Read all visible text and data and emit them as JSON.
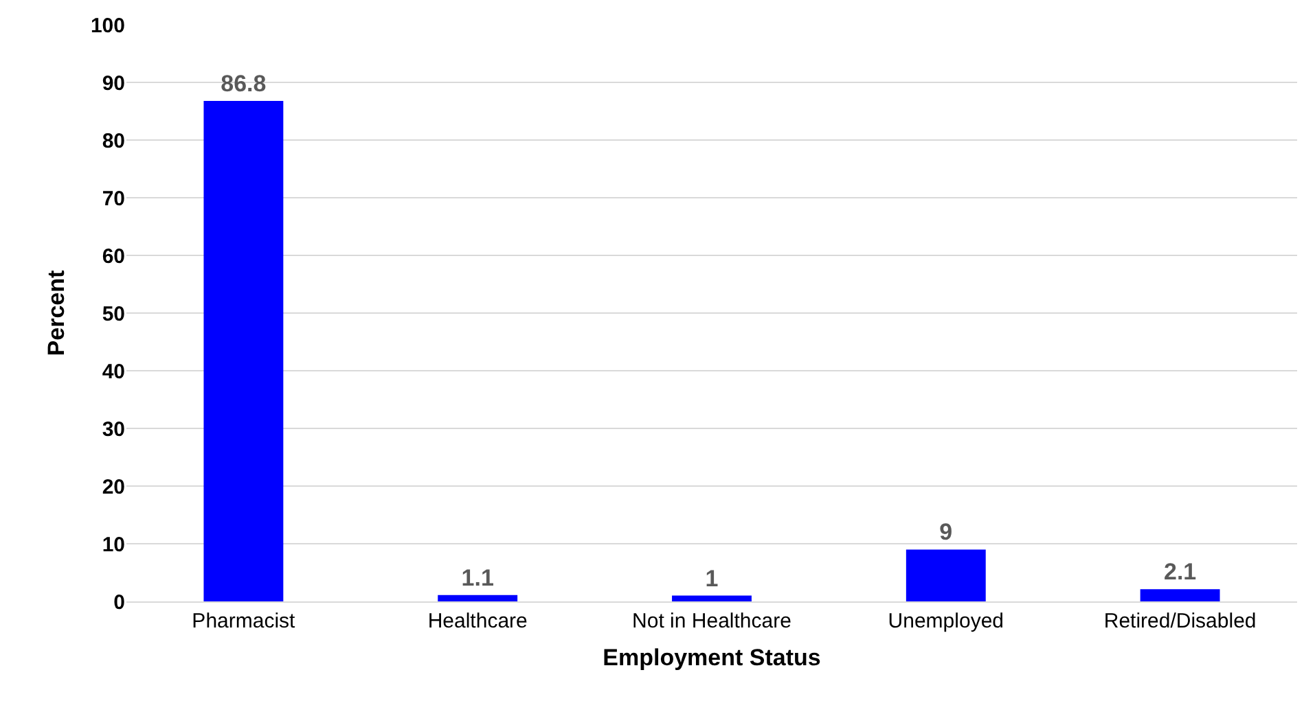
{
  "chart_data": {
    "type": "bar",
    "xlabel": "Employment Status",
    "ylabel": "Percent",
    "categories": [
      "Pharmacist",
      "Healthcare",
      "Not in Healthcare",
      "Unemployed",
      "Retired/Disabled"
    ],
    "values": [
      86.8,
      1.1,
      1,
      9,
      2.1
    ],
    "color": "#0000ff",
    "ylim": [
      0,
      100
    ],
    "yticks": [
      0,
      10,
      20,
      30,
      40,
      50,
      60,
      70,
      80,
      90,
      100
    ],
    "grid": "y",
    "data_labels": true,
    "legend": false
  }
}
